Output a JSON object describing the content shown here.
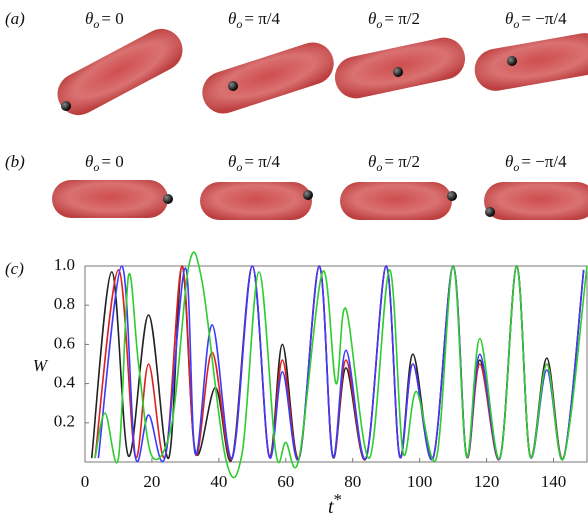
{
  "panel_labels": [
    "(a)",
    "(b)",
    "(c)"
  ],
  "angles": [
    {
      "symbol": "θ",
      "sub": "o",
      "rhs": "= 0"
    },
    {
      "symbol": "θ",
      "sub": "o",
      "rhs": "= π/4"
    },
    {
      "symbol": "θ",
      "sub": "o",
      "rhs": "= π/2"
    },
    {
      "symbol": "θ",
      "sub": "o",
      "rhs": "= −π/4"
    }
  ],
  "chart_data": {
    "type": "line",
    "ylabel": "W",
    "xlabel": "t",
    "xlabel_sup": "*",
    "xlim": [
      0,
      150
    ],
    "ylim": [
      0,
      1
    ],
    "xticks": [
      0,
      20,
      40,
      60,
      80,
      100,
      120,
      140
    ],
    "yticks": [
      0.2,
      0.4,
      0.6,
      0.8,
      {
        "value": 1,
        "label": "1.0"
      }
    ],
    "series": [
      {
        "color": "#222222",
        "x": [
          2,
          8,
          13,
          19,
          25,
          29,
          33,
          39,
          44,
          50,
          55,
          59,
          64,
          70,
          74,
          78,
          84,
          90,
          94,
          98,
          104,
          110,
          114,
          118,
          124,
          129,
          133,
          138,
          143,
          149
        ],
        "values": [
          0.02,
          0.97,
          0.03,
          0.75,
          0.02,
          1.0,
          0.05,
          0.38,
          0.02,
          1.0,
          0.03,
          0.6,
          0.02,
          1.0,
          0.03,
          0.48,
          0.02,
          1.0,
          0.03,
          0.55,
          0.02,
          1.0,
          0.03,
          0.52,
          0.02,
          1.0,
          0.03,
          0.53,
          0.02,
          0.98
        ]
      },
      {
        "color": "#e02020",
        "x": [
          3,
          10,
          15,
          19,
          24,
          29,
          33,
          38,
          44,
          50,
          55,
          59,
          64,
          70,
          74,
          78,
          84,
          90,
          94,
          98,
          104,
          110,
          114,
          118,
          124,
          129,
          133,
          138,
          143,
          149
        ],
        "values": [
          0.02,
          0.98,
          0.03,
          0.5,
          0.03,
          1.0,
          0.04,
          0.56,
          0.02,
          1.0,
          0.03,
          0.52,
          0.02,
          1.0,
          0.03,
          0.52,
          0.02,
          1.0,
          0.03,
          0.5,
          0.02,
          1.0,
          0.03,
          0.5,
          0.02,
          1.0,
          0.03,
          0.5,
          0.02,
          0.98
        ]
      },
      {
        "color": "#3b3bff",
        "x": [
          4,
          11,
          15,
          19,
          24,
          30,
          33,
          38,
          44,
          50,
          55,
          59,
          64,
          70,
          74,
          78,
          84,
          90,
          94,
          98,
          104,
          110,
          114,
          118,
          124,
          129,
          133,
          138,
          143,
          149
        ],
        "values": [
          0.02,
          1.0,
          0.03,
          0.24,
          0.03,
          0.99,
          0.04,
          0.7,
          0.02,
          1.0,
          0.03,
          0.46,
          0.02,
          1.0,
          0.03,
          0.57,
          0.02,
          1.0,
          0.03,
          0.5,
          0.02,
          1.0,
          0.03,
          0.55,
          0.02,
          1.0,
          0.03,
          0.47,
          0.02,
          0.98
        ]
      },
      {
        "color": "#2ecc2e",
        "x": [
          3,
          6,
          10,
          13,
          16,
          20,
          26,
          31,
          35,
          42,
          47,
          52,
          57,
          60,
          64,
          71,
          75,
          78,
          85,
          91,
          95,
          99,
          105,
          110,
          114,
          118,
          124,
          129,
          133,
          138,
          143,
          150
        ],
        "values": [
          0.02,
          0.25,
          0.02,
          0.95,
          0.5,
          0.03,
          0.2,
          1.0,
          0.92,
          0.02,
          0.05,
          0.97,
          0.05,
          0.1,
          0.02,
          0.97,
          0.4,
          0.78,
          0.02,
          0.98,
          0.05,
          0.36,
          0.02,
          1.0,
          0.03,
          0.63,
          0.02,
          1.0,
          0.03,
          0.5,
          0.02,
          1.0
        ]
      }
    ]
  }
}
